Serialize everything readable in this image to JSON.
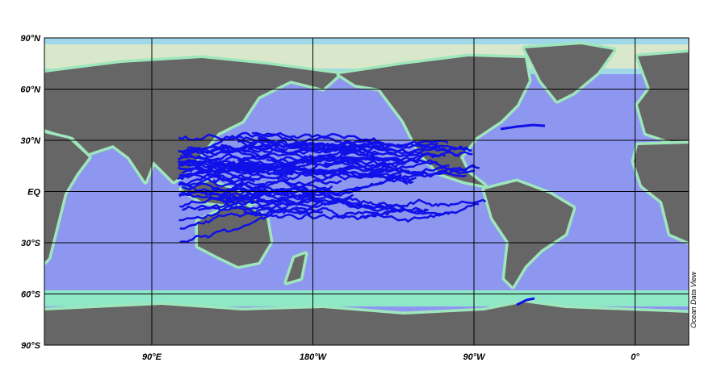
{
  "map": {
    "lat_labels": [
      "90°N",
      "60°N",
      "30°N",
      "EQ",
      "30°S",
      "60°S",
      "90°S"
    ],
    "lon_labels": [
      "90°E",
      "180°W",
      "90°W",
      "0°"
    ],
    "credit": "Ocean Data View"
  }
}
